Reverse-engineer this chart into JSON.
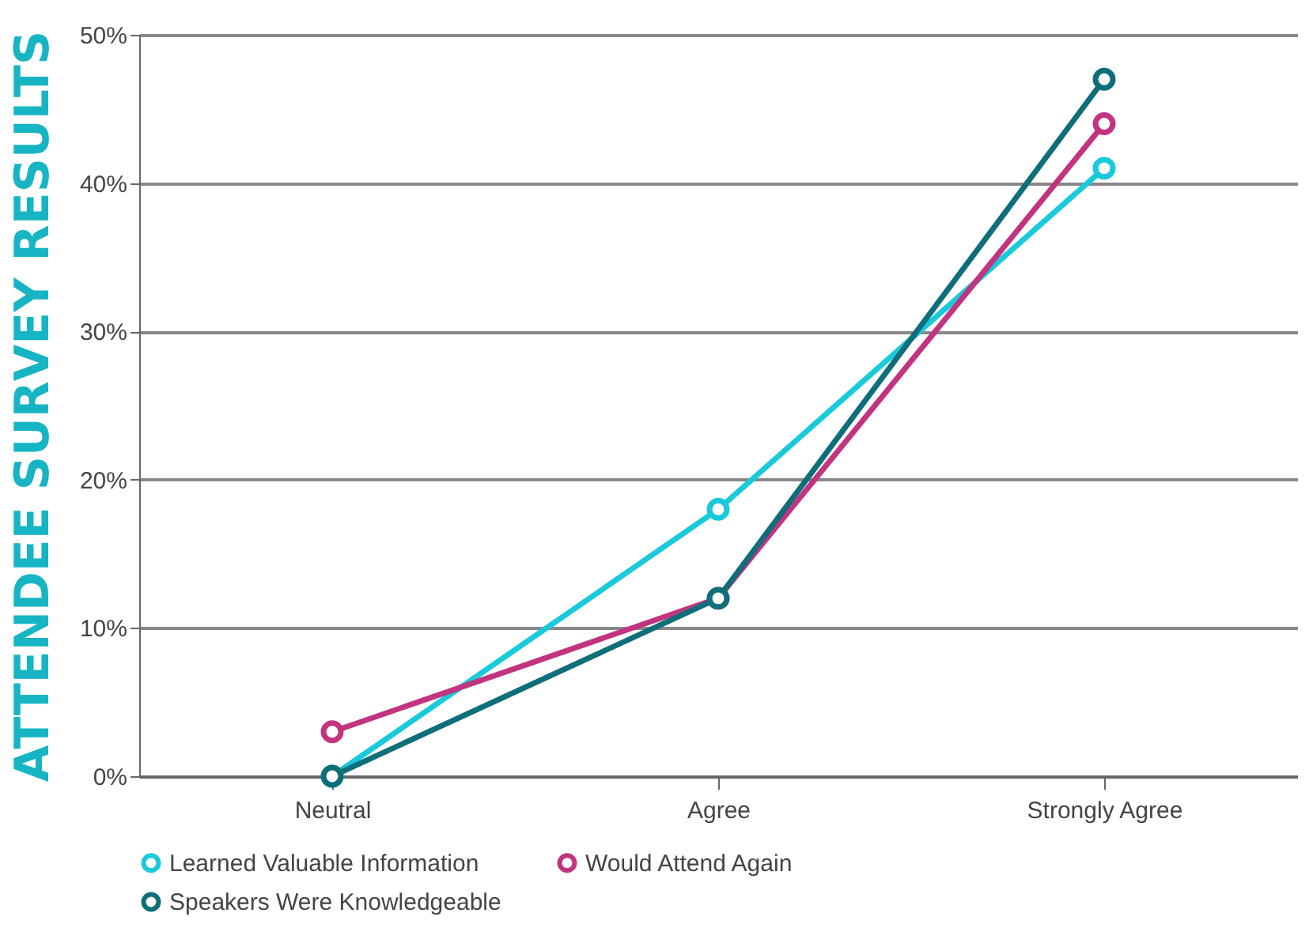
{
  "chart_data": {
    "type": "line",
    "ylabel": "ATTENDEE SURVEY RESULTS",
    "categories": [
      "Neutral",
      "Agree",
      "Strongly Agree"
    ],
    "series": [
      {
        "name": "Learned Valuable Information",
        "color": "#19c9dc",
        "values": [
          0,
          18,
          41
        ]
      },
      {
        "name": "Would Attend Again",
        "color": "#c2347f",
        "values": [
          3,
          12,
          44
        ]
      },
      {
        "name": "Speakers Were Knowledgeable",
        "color": "#0e6e7a",
        "values": [
          0,
          12,
          47
        ]
      }
    ],
    "ylim": [
      0,
      50
    ],
    "yticks": [
      {
        "value": 0,
        "label": "0%"
      },
      {
        "value": 10,
        "label": "10%"
      },
      {
        "value": 20,
        "label": "20%"
      },
      {
        "value": 30,
        "label": "30%"
      },
      {
        "value": 40,
        "label": "40%"
      },
      {
        "value": 50,
        "label": "50%"
      }
    ],
    "grid": "y",
    "legend": "bottom",
    "marker": "circle",
    "line_style": "solid"
  }
}
